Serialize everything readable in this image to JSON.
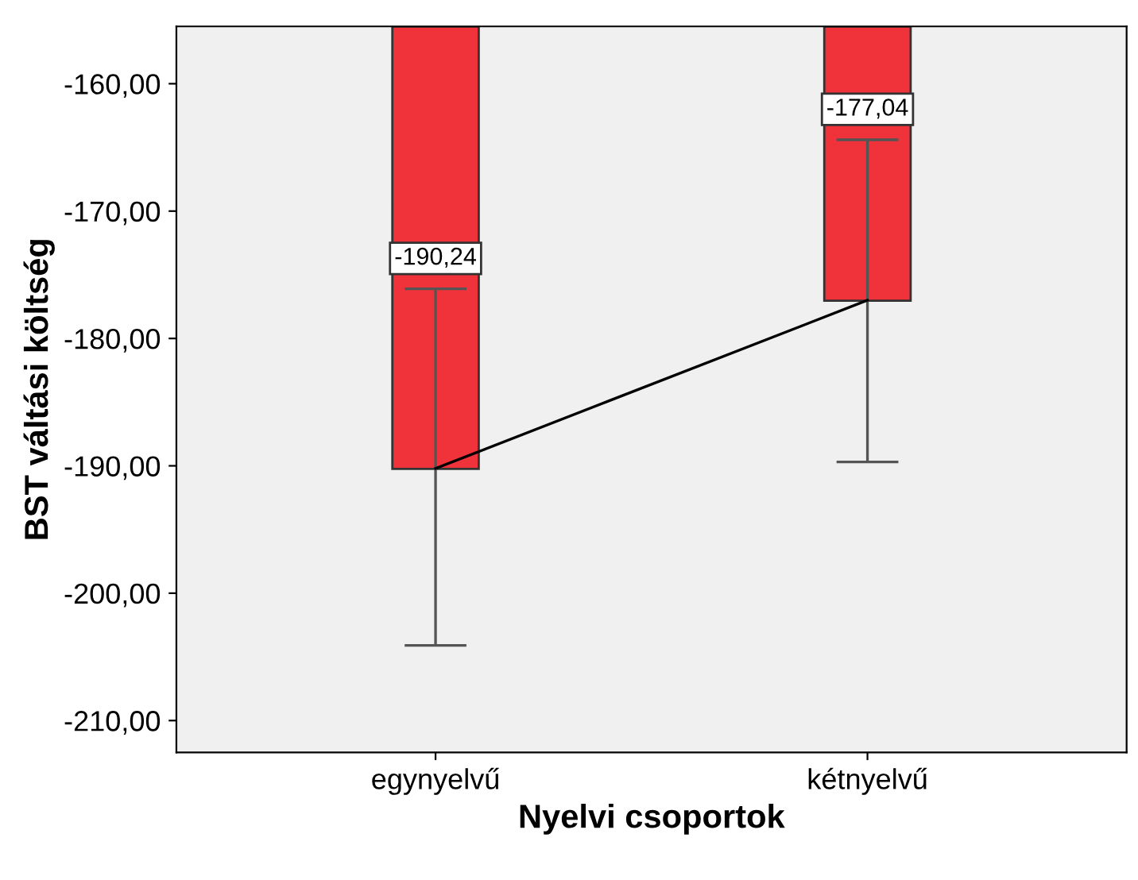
{
  "chart_data": {
    "type": "bar",
    "xlabel": "Nyelvi csoportok",
    "ylabel": "BST váltási költség",
    "categories": [
      "egynyelvű",
      "kétnyelvű"
    ],
    "series": [
      {
        "color": "#f0323a",
        "values": [
          -190.24,
          -177.04
        ],
        "value_labels": [
          "-190,24",
          "-177,04"
        ],
        "errors": [
          [
            -204.1,
            -176.1
          ],
          [
            -189.7,
            -164.4
          ]
        ]
      },
      {
        "type": "line",
        "color": "#000000",
        "values": [
          -190.2,
          -177.0
        ]
      }
    ],
    "ylim": [
      -212.5,
      -155.5
    ],
    "yticks": [
      {
        "value": -210,
        "label": "-210,00"
      },
      {
        "value": -200,
        "label": "-200,00"
      },
      {
        "value": -190,
        "label": "-190,00"
      },
      {
        "value": -180,
        "label": "-180,00"
      },
      {
        "value": -170,
        "label": "-170,00"
      },
      {
        "value": -160,
        "label": "-160,00"
      }
    ],
    "grid": false
  }
}
